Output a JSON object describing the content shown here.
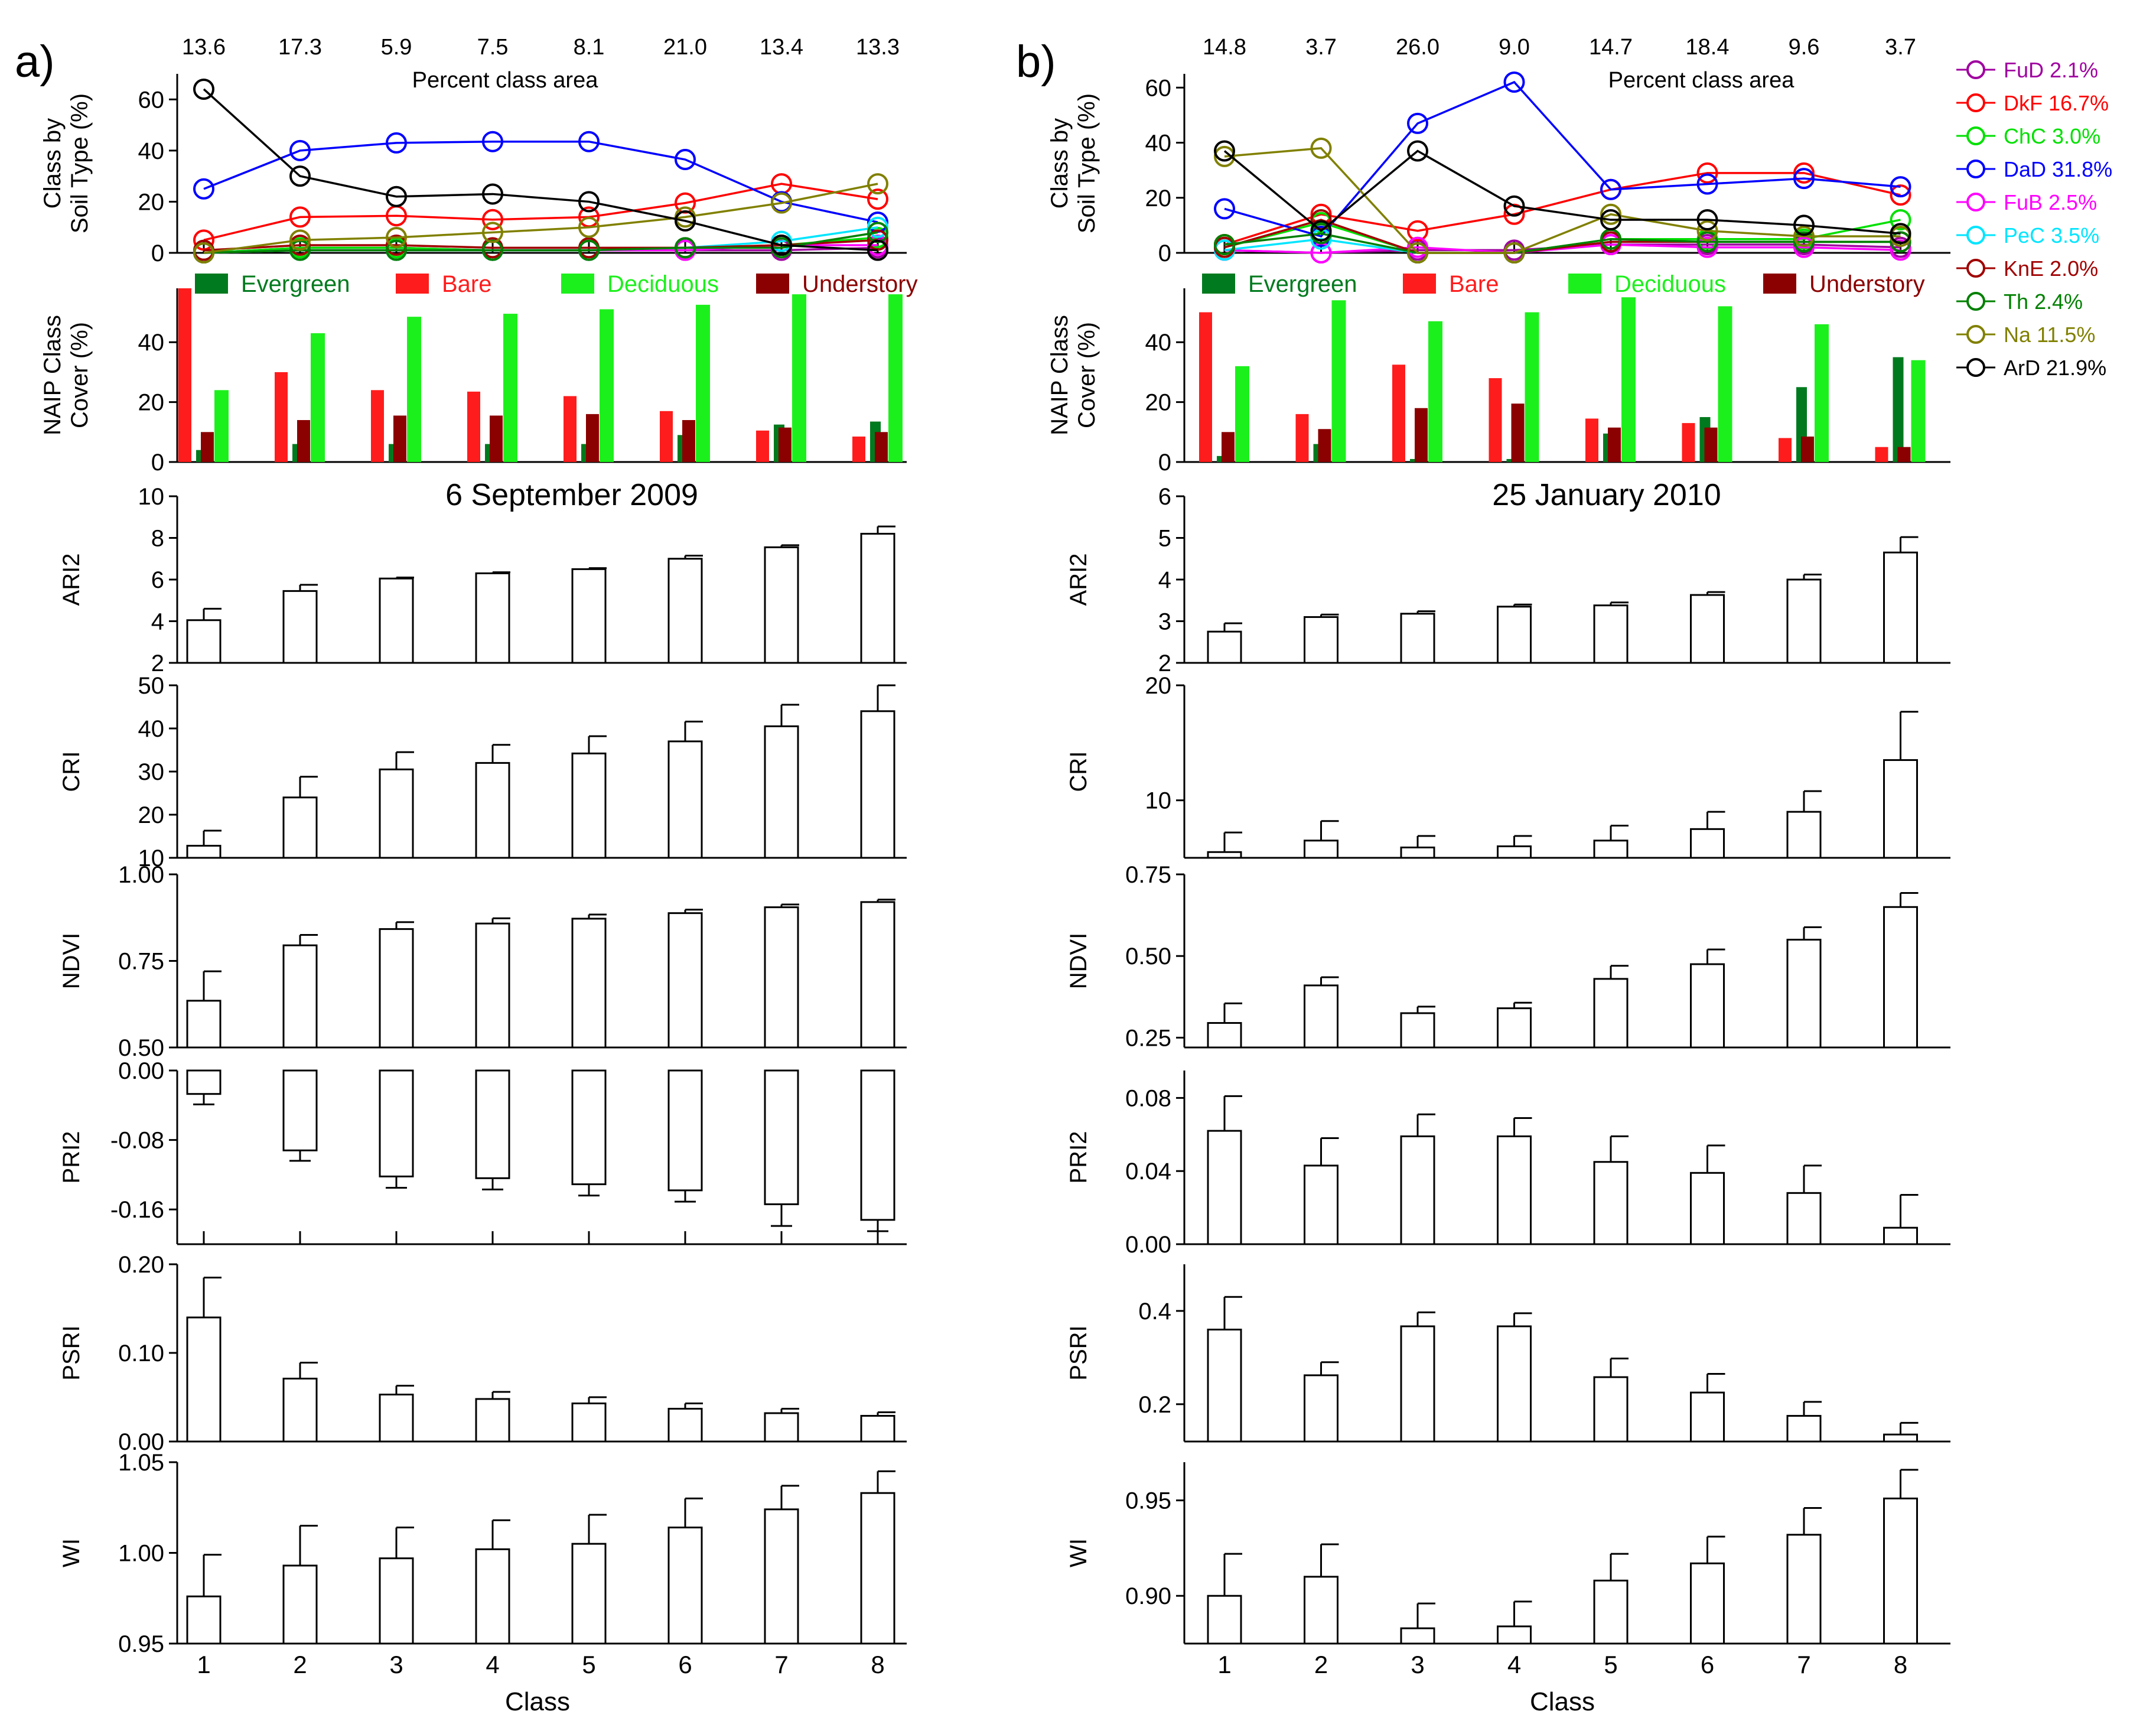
{
  "classes": [
    "1",
    "2",
    "3",
    "4",
    "5",
    "6",
    "7",
    "8"
  ],
  "xlabel": "Class",
  "pct_area_label": "Percent class area",
  "cover_legend": [
    {
      "name": "Evergreen",
      "color": "#007A1E",
      "textcolor": "#007A1E"
    },
    {
      "name": "Bare",
      "color": "#FF1C1C",
      "textcolor": "#FF1C1C"
    },
    {
      "name": "Deciduous",
      "color": "#1CF01C",
      "textcolor": "#1CF01C"
    },
    {
      "name": "Understory",
      "color": "#8B0000",
      "textcolor": "#8B0000"
    }
  ],
  "soil_legend": [
    {
      "label": "FuD 2.1%",
      "color": "#A000A0"
    },
    {
      "label": "DkF 16.7%",
      "color": "#FF0000"
    },
    {
      "label": "ChC 3.0%",
      "color": "#00E000"
    },
    {
      "label": "DaD  31.8%",
      "color": "#0000FF"
    },
    {
      "label": "FuB 2.5%",
      "color": "#FF00FF"
    },
    {
      "label": "PeC 3.5%",
      "color": "#00E5FF"
    },
    {
      "label": "KnE 2.0%",
      "color": "#A00000"
    },
    {
      "label": "Th 2.4%",
      "color": "#008000"
    },
    {
      "label": "Na 11.5%",
      "color": "#808000"
    },
    {
      "label": "ArD 21.9%",
      "color": "#000000"
    }
  ],
  "panels": [
    {
      "letter": "a)",
      "date": "6 September 2009",
      "pct_area": [
        "13.6",
        "17.3",
        "5.9",
        "7.5",
        "8.1",
        "21.0",
        "13.4",
        "13.3"
      ],
      "soil_chart": {
        "type": "line",
        "ylabel": [
          "Class by",
          "Soil Type (%)"
        ],
        "ylim": [
          0,
          70
        ],
        "ticks": [
          "0",
          "20",
          "40",
          "60"
        ],
        "series": [
          {
            "name": "FuD",
            "color": "#A000A0",
            "values": [
              0,
              2,
              2,
              1,
              1,
              1,
              1,
              2
            ]
          },
          {
            "name": "DkF",
            "color": "#FF0000",
            "values": [
              5,
              14,
              14.5,
              13,
              14,
              19.5,
              27,
              21
            ]
          },
          {
            "name": "ChC",
            "color": "#00E000",
            "values": [
              0,
              2,
              2,
              1,
              1,
              2,
              3,
              6
            ]
          },
          {
            "name": "DaD",
            "color": "#0000FF",
            "values": [
              25,
              40,
              43,
              43.5,
              43.5,
              36.5,
              20,
              12
            ]
          },
          {
            "name": "FuB",
            "color": "#FF00FF",
            "values": [
              0,
              1,
              1,
              1,
              1,
              1,
              3,
              3
            ]
          },
          {
            "name": "PeC",
            "color": "#00E5FF",
            "values": [
              0,
              1,
              1,
              1,
              1,
              2,
              4.5,
              10
            ]
          },
          {
            "name": "KnE",
            "color": "#A00000",
            "values": [
              1,
              3,
              3,
              2,
              2,
              2,
              3,
              5
            ]
          },
          {
            "name": "Th",
            "color": "#008000",
            "values": [
              0,
              1,
              1,
              1,
              1,
              2,
              2,
              8
            ]
          },
          {
            "name": "Na",
            "color": "#808000",
            "values": [
              0,
              5,
              6,
              8,
              10,
              14,
              19.5,
              27
            ]
          },
          {
            "name": "ArD",
            "color": "#000000",
            "values": [
              64,
              30,
              22,
              23,
              20,
              12.5,
              3,
              1
            ]
          }
        ]
      },
      "cover_chart": {
        "type": "bar",
        "ylabel": [
          "NAIP Class",
          "Cover (%)"
        ],
        "ylim": [
          0,
          58
        ],
        "ticks": [
          "0",
          "20",
          "40"
        ],
        "series": [
          {
            "name": "Bare",
            "color": "#FF1C1C",
            "values": [
              58,
              30,
              24,
              23.5,
              22,
              17,
              10.5,
              8.5
            ]
          },
          {
            "name": "Evergreen",
            "color": "#007A1E",
            "values": [
              4,
              6,
              6,
              6,
              6,
              9,
              12.5,
              13.5
            ]
          },
          {
            "name": "Understory",
            "color": "#8B0000",
            "values": [
              10,
              14,
              15.5,
              15.5,
              16,
              14,
              11.5,
              10
            ]
          },
          {
            "name": "Deciduous",
            "color": "#1CF01C",
            "values": [
              24,
              43,
              48.5,
              49.5,
              51,
              52.5,
              56,
              56
            ]
          }
        ]
      },
      "indices": [
        {
          "name": "ARI2",
          "type": "bar",
          "ylim": [
            2,
            10
          ],
          "ticks": [
            2,
            4,
            6,
            8,
            10
          ],
          "ticklabels": [
            "2",
            "4",
            "6",
            "8",
            "10"
          ],
          "values": [
            4.05,
            5.45,
            6.05,
            6.3,
            6.5,
            7,
            7.55,
            8.2
          ],
          "errors": [
            0.55,
            0.3,
            0.05,
            0.05,
            0.05,
            0.15,
            0.1,
            0.35
          ]
        },
        {
          "name": "CRI",
          "type": "bar",
          "ylim": [
            10,
            50
          ],
          "ticks": [
            10,
            20,
            30,
            40,
            50
          ],
          "ticklabels": [
            "10",
            "20",
            "30",
            "40",
            "50"
          ],
          "values": [
            12.8,
            24,
            30.5,
            32,
            34.2,
            37,
            40.5,
            44
          ],
          "errors": [
            3.5,
            4.8,
            4,
            4.2,
            4,
            4.6,
            5,
            6
          ]
        },
        {
          "name": "NDVI",
          "type": "bar",
          "ylim": [
            0.5,
            1.0
          ],
          "ticks": [
            0.5,
            0.75,
            1.0
          ],
          "ticklabels": [
            "0.50",
            "0.75",
            "1.00"
          ],
          "values": [
            0.635,
            0.795,
            0.842,
            0.858,
            0.872,
            0.888,
            0.905,
            0.92
          ],
          "errors": [
            0.085,
            0.03,
            0.02,
            0.015,
            0.012,
            0.01,
            0.008,
            0.007
          ]
        },
        {
          "name": "PRI2",
          "type": "bar",
          "ylim": [
            -0.2,
            0.0
          ],
          "ticks": [
            0.0,
            -0.08,
            -0.16
          ],
          "ticklabels": [
            "0.00",
            "-0.08",
            "-0.16"
          ],
          "values": [
            -0.027,
            -0.092,
            -0.122,
            -0.124,
            -0.131,
            -0.138,
            -0.154,
            -0.172
          ],
          "errors": [
            0.012,
            0.012,
            0.013,
            0.013,
            0.013,
            0.013,
            0.025,
            0.013
          ]
        },
        {
          "name": "PSRI",
          "type": "bar",
          "ylim": [
            0.0,
            0.2
          ],
          "ticks": [
            0.0,
            0.1,
            0.2
          ],
          "ticklabels": [
            "0.00",
            "0.10",
            "0.20"
          ],
          "values": [
            0.14,
            0.071,
            0.053,
            0.048,
            0.043,
            0.037,
            0.032,
            0.029
          ],
          "errors": [
            0.045,
            0.018,
            0.01,
            0.008,
            0.007,
            0.006,
            0.005,
            0.004
          ]
        },
        {
          "name": "WI",
          "type": "bar",
          "ylim": [
            0.95,
            1.05
          ],
          "ticks": [
            0.95,
            1.0,
            1.05
          ],
          "ticklabels": [
            "0.95",
            "1.00",
            "1.05"
          ],
          "values": [
            0.976,
            0.993,
            0.997,
            1.002,
            1.005,
            1.014,
            1.024,
            1.033
          ],
          "errors": [
            0.023,
            0.022,
            0.017,
            0.016,
            0.016,
            0.016,
            0.013,
            0.012
          ]
        }
      ]
    },
    {
      "letter": "b)",
      "date": "25 January 2010",
      "pct_area": [
        "14.8",
        "3.7",
        "26.0",
        "9.0",
        "14.7",
        "18.4",
        "9.6",
        "3.7"
      ],
      "soil_chart": {
        "type": "line",
        "ylabel": [
          "Class by",
          "Soil Type (%)"
        ],
        "ylim": [
          0,
          65
        ],
        "ticks": [
          "0",
          "20",
          "40",
          "60"
        ],
        "series": [
          {
            "name": "FuD",
            "color": "#A000A0",
            "values": [
              1,
              0,
              1,
              1,
              3,
              3,
              3,
              2
            ]
          },
          {
            "name": "DkF",
            "color": "#FF0000",
            "values": [
              3,
              14,
              8,
              14,
              23,
              29,
              29,
              21
            ]
          },
          {
            "name": "ChC",
            "color": "#00E000",
            "values": [
              2,
              11,
              0,
              0,
              5,
              5,
              5,
              12
            ]
          },
          {
            "name": "DaD",
            "color": "#0000FF",
            "values": [
              16,
              6,
              47,
              62,
              23,
              25,
              27,
              24
            ]
          },
          {
            "name": "FuB",
            "color": "#FF00FF",
            "values": [
              1,
              0,
              2,
              0,
              3,
              2,
              2,
              1
            ]
          },
          {
            "name": "PeC",
            "color": "#00E5FF",
            "values": [
              1,
              5,
              0,
              0,
              4,
              4,
              4,
              4
            ]
          },
          {
            "name": "KnE",
            "color": "#A00000",
            "values": [
              2,
              12,
              0,
              0,
              4,
              4,
              4,
              4
            ]
          },
          {
            "name": "Th",
            "color": "#008000",
            "values": [
              3,
              7,
              0,
              0,
              5,
              4,
              4,
              4
            ]
          },
          {
            "name": "Na",
            "color": "#808000",
            "values": [
              35,
              38,
              0,
              0,
              14,
              8,
              6,
              6
            ]
          },
          {
            "name": "ArD",
            "color": "#000000",
            "values": [
              37,
              8,
              37,
              17,
              12,
              12,
              10,
              7
            ]
          }
        ]
      },
      "cover_chart": {
        "type": "bar",
        "ylabel": [
          "NAIP Class",
          "Cover (%)"
        ],
        "ylim": [
          0,
          58
        ],
        "ticks": [
          "0",
          "20",
          "40"
        ],
        "series": [
          {
            "name": "Bare",
            "color": "#FF1C1C",
            "values": [
              50,
              16,
              32.5,
              28,
              14.5,
              13,
              8,
              5
            ]
          },
          {
            "name": "Evergreen",
            "color": "#007A1E",
            "values": [
              2,
              6,
              1,
              1,
              9.5,
              15,
              25,
              35
            ]
          },
          {
            "name": "Understory",
            "color": "#8B0000",
            "values": [
              10,
              11,
              18,
              19.5,
              11.5,
              11.5,
              8.5,
              5
            ]
          },
          {
            "name": "Deciduous",
            "color": "#1CF01C",
            "values": [
              32,
              54,
              47,
              50,
              55,
              52,
              46,
              34
            ]
          }
        ]
      },
      "indices": [
        {
          "name": "ARI2",
          "type": "bar",
          "ylim": [
            2,
            6
          ],
          "ticks": [
            2,
            3,
            4,
            5,
            6
          ],
          "ticklabels": [
            "2",
            "3",
            "4",
            "5",
            "6"
          ],
          "values": [
            2.75,
            3.1,
            3.18,
            3.35,
            3.38,
            3.63,
            4,
            4.65
          ],
          "errors": [
            0.2,
            0.06,
            0.06,
            0.05,
            0.07,
            0.07,
            0.12,
            0.37
          ]
        },
        {
          "name": "CRI",
          "type": "bar",
          "ylim": [
            5,
            20
          ],
          "ticks": [
            10,
            20
          ],
          "ticklabels": [
            "10",
            "20"
          ],
          "values": [
            5.5,
            6.5,
            5.9,
            6,
            6.5,
            7.5,
            9,
            13.5
          ],
          "errors": [
            1.7,
            1.7,
            1,
            0.9,
            1.3,
            1.5,
            1.8,
            4.2
          ]
        },
        {
          "name": "NDVI",
          "type": "bar",
          "ylim": [
            0.22,
            0.75
          ],
          "ticks": [
            0.25,
            0.5,
            0.75
          ],
          "ticklabels": [
            "0.25",
            "0.50",
            "0.75"
          ],
          "values": [
            0.295,
            0.41,
            0.325,
            0.34,
            0.43,
            0.475,
            0.55,
            0.65
          ],
          "errors": [
            0.06,
            0.025,
            0.02,
            0.017,
            0.04,
            0.045,
            0.038,
            0.043
          ]
        },
        {
          "name": "PRI2",
          "type": "bar",
          "ylim": [
            0.0,
            0.095
          ],
          "ticks": [
            0.0,
            0.04,
            0.08
          ],
          "ticklabels": [
            "0.00",
            "0.04",
            "0.08"
          ],
          "values": [
            0.062,
            0.043,
            0.059,
            0.059,
            0.045,
            0.039,
            0.028,
            0.009
          ],
          "errors": [
            0.019,
            0.015,
            0.012,
            0.01,
            0.014,
            0.015,
            0.015,
            0.018
          ]
        },
        {
          "name": "PSRI",
          "type": "bar",
          "ylim": [
            0.12,
            0.5
          ],
          "ticks": [
            0.2,
            0.4
          ],
          "ticklabels": [
            "0.2",
            "0.4"
          ],
          "values": [
            0.36,
            0.262,
            0.367,
            0.367,
            0.258,
            0.225,
            0.175,
            0.135
          ],
          "errors": [
            0.07,
            0.028,
            0.03,
            0.028,
            0.04,
            0.04,
            0.03,
            0.025
          ]
        },
        {
          "name": "WI",
          "type": "bar",
          "ylim": [
            0.875,
            0.97
          ],
          "ticks": [
            0.9,
            0.95
          ],
          "ticklabels": [
            "0.90",
            "0.95"
          ],
          "values": [
            0.9,
            0.91,
            0.883,
            0.884,
            0.908,
            0.917,
            0.932,
            0.951
          ],
          "errors": [
            0.022,
            0.017,
            0.013,
            0.013,
            0.014,
            0.014,
            0.014,
            0.015
          ]
        }
      ]
    }
  ]
}
